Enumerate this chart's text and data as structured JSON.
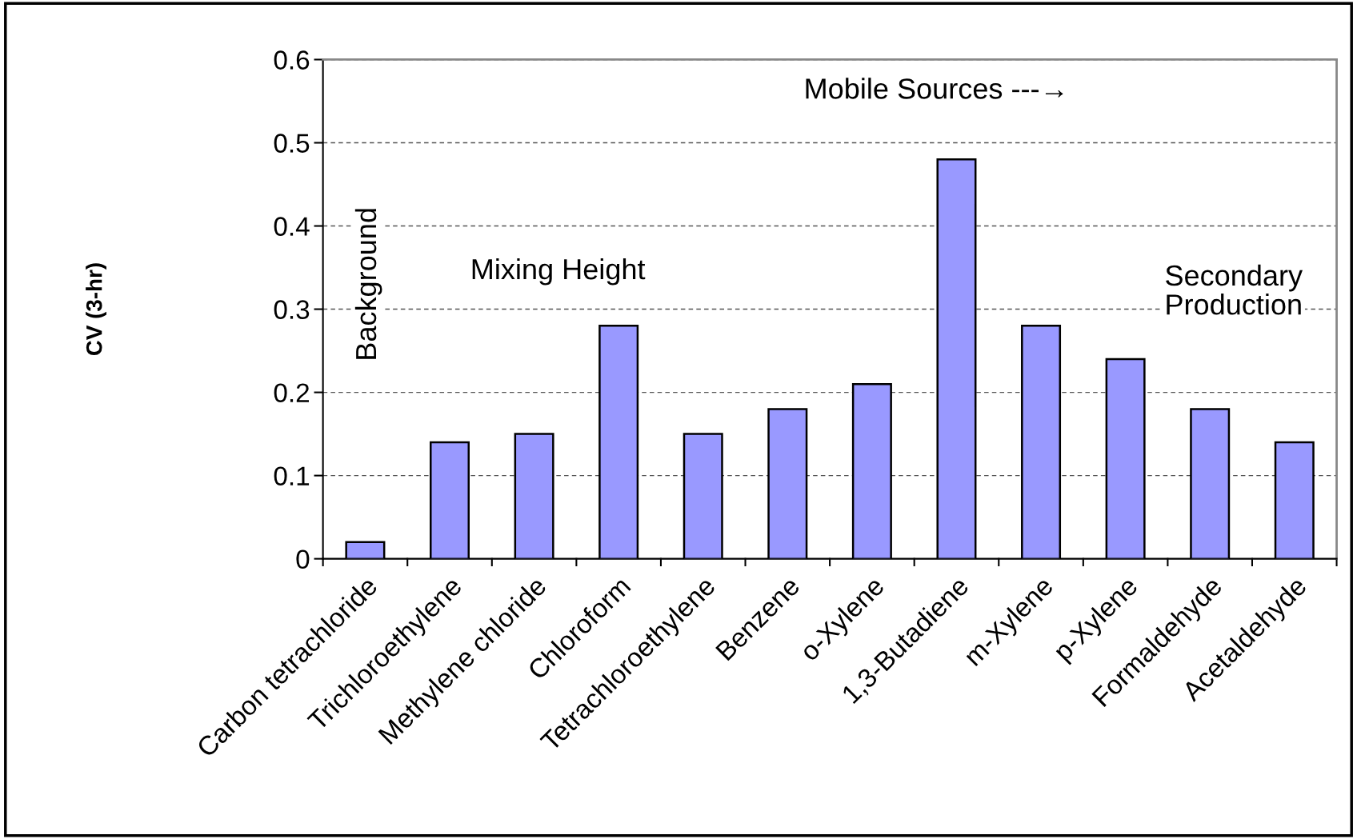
{
  "chart_data": {
    "type": "bar",
    "ylabel": "CV (3-hr)",
    "categories": [
      "Carbon tetrachloride",
      "Trichloroethylene",
      "Methylene chloride",
      "Chloroform",
      "Tetrachloroethylene",
      "Benzene",
      "o-Xylene",
      "1,3-Butadiene",
      "m-Xylene",
      "p-Xylene",
      "Formaldehyde",
      "Acetaldehyde"
    ],
    "values": [
      0.02,
      0.14,
      0.15,
      0.28,
      0.15,
      0.18,
      0.21,
      0.48,
      0.28,
      0.24,
      0.18,
      0.14
    ],
    "color": "#9999ff",
    "ylim": [
      0,
      0.6
    ],
    "yticks": [
      {
        "value": 0,
        "label": "0"
      },
      0.1,
      0.2,
      0.3,
      0.4,
      0.5,
      0.6
    ],
    "grid": "y",
    "line_style": "dashed",
    "annotations": [
      "Background",
      "Mixing Height",
      "Mobile Sources ---→",
      "Secondary\nProduction"
    ]
  }
}
